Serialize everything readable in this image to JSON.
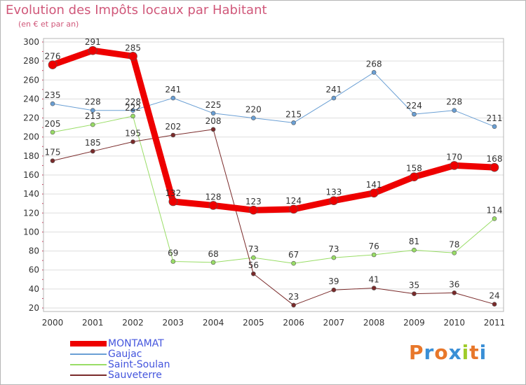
{
  "chart_data": {
    "type": "line",
    "title": "Evolution des Impôts locaux par Habitant",
    "subtitle": "(en € et par an)",
    "categories": [
      "2000",
      "2001",
      "2002",
      "2003",
      "2004",
      "2005",
      "2006",
      "2007",
      "2008",
      "2009",
      "2010",
      "2011"
    ],
    "ylim": [
      20,
      300
    ],
    "yticks": [
      20,
      40,
      60,
      80,
      100,
      120,
      140,
      160,
      180,
      200,
      220,
      240,
      260,
      280,
      300
    ],
    "series": [
      {
        "name": "MONTAMAT",
        "color": "#ee0000",
        "values": [
          276,
          291,
          285,
          132,
          128,
          123,
          124,
          133,
          141,
          158,
          170,
          168
        ]
      },
      {
        "name": "Gaujac",
        "color": "#6a9fd4",
        "values": [
          235,
          228,
          228,
          241,
          225,
          220,
          215,
          241,
          268,
          224,
          228,
          211
        ]
      },
      {
        "name": "Saint-Soulan",
        "color": "#99dd66",
        "values": [
          205,
          213,
          222,
          69,
          68,
          73,
          67,
          73,
          76,
          81,
          78,
          114
        ]
      },
      {
        "name": "Sauveterre",
        "color": "#7a2a2a",
        "values": [
          175,
          185,
          195,
          202,
          208,
          56,
          23,
          39,
          41,
          35,
          36,
          24
        ]
      }
    ]
  },
  "legend": {
    "items": [
      {
        "label": "MONTAMAT",
        "color": "#ee0000"
      },
      {
        "label": "Gaujac",
        "color": "#6a9fd4"
      },
      {
        "label": "Saint-Soulan",
        "color": "#99dd66"
      },
      {
        "label": "Sauveterre",
        "color": "#7a2a2a"
      }
    ]
  },
  "logo": {
    "text": "Proxiti"
  }
}
